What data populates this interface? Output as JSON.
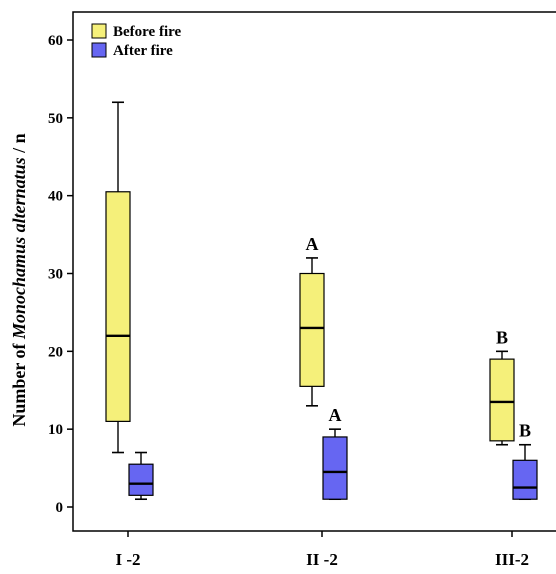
{
  "chart_data": {
    "type": "box",
    "title": "",
    "ylabel_prefix": "Number of ",
    "ylabel_italic": "Monochamus alternatus",
    "ylabel_suffix": " / n",
    "xlabel": "",
    "ylim": [
      0,
      60
    ],
    "yticks": [
      "0",
      "10",
      "20",
      "30",
      "40",
      "50",
      "60"
    ],
    "ytick_values": [
      0,
      10,
      20,
      30,
      40,
      50,
      60
    ],
    "categories": [
      "I -2",
      "II -2",
      "III-2"
    ],
    "legend_position": "top-left",
    "grid": false,
    "series": [
      {
        "name": "Before fire",
        "color": "#f5f07a",
        "boxes": [
          {
            "min": 7,
            "q1": 11,
            "median": 22,
            "q3": 40.5,
            "max": 52,
            "label": ""
          },
          {
            "min": 13,
            "q1": 15.5,
            "median": 23,
            "q3": 30,
            "max": 32,
            "label": "A"
          },
          {
            "min": 8,
            "q1": 8.5,
            "median": 13.5,
            "q3": 19,
            "max": 20,
            "label": "B"
          }
        ]
      },
      {
        "name": "After fire",
        "color": "#6666f2",
        "boxes": [
          {
            "min": 1,
            "q1": 1.5,
            "median": 3,
            "q3": 5.5,
            "max": 7,
            "label": ""
          },
          {
            "min": 1,
            "q1": 1,
            "median": 4.5,
            "q3": 9,
            "max": 10,
            "label": "A"
          },
          {
            "min": 1,
            "q1": 1,
            "median": 2.5,
            "q3": 6,
            "max": 8,
            "label": "B"
          }
        ]
      }
    ]
  }
}
